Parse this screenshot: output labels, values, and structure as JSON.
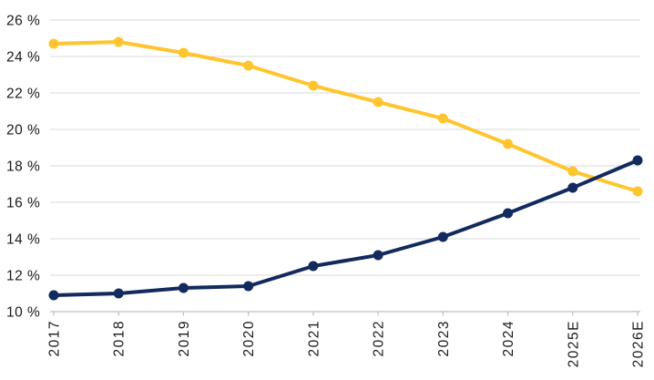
{
  "chart_data": {
    "type": "line",
    "title": "",
    "xlabel": "",
    "ylabel": "",
    "categories": [
      "2017",
      "2018",
      "2019",
      "2020",
      "2021",
      "2022",
      "2023",
      "2024",
      "2025E",
      "2026E"
    ],
    "series": [
      {
        "name": "yellow",
        "color": "#FFC52F",
        "values": [
          24.7,
          24.8,
          24.2,
          23.5,
          22.4,
          21.5,
          20.6,
          19.2,
          17.7,
          16.6
        ]
      },
      {
        "name": "navy",
        "color": "#122A5E",
        "values": [
          10.9,
          11.0,
          11.3,
          11.4,
          12.5,
          13.1,
          14.1,
          15.4,
          16.8,
          18.3
        ]
      }
    ],
    "y_axis": {
      "min": 10,
      "max": 26,
      "step": 2,
      "tick_labels": [
        "10 %",
        "12 %",
        "14 %",
        "16 %",
        "18 %",
        "20 %",
        "22 %",
        "24 %",
        "26 %"
      ]
    },
    "ylim": [
      10,
      26
    ],
    "grid": true,
    "legend": false,
    "marker": "circle",
    "x_labels_rotated_degrees": 90
  },
  "style": {
    "gridline_color": "#d9d9d9",
    "axis_line_color": "#bfbfbf",
    "tick_text_color": "#1a1a1a",
    "background_color": "#ffffff",
    "line_width": 4,
    "marker_radius": 5.5
  }
}
